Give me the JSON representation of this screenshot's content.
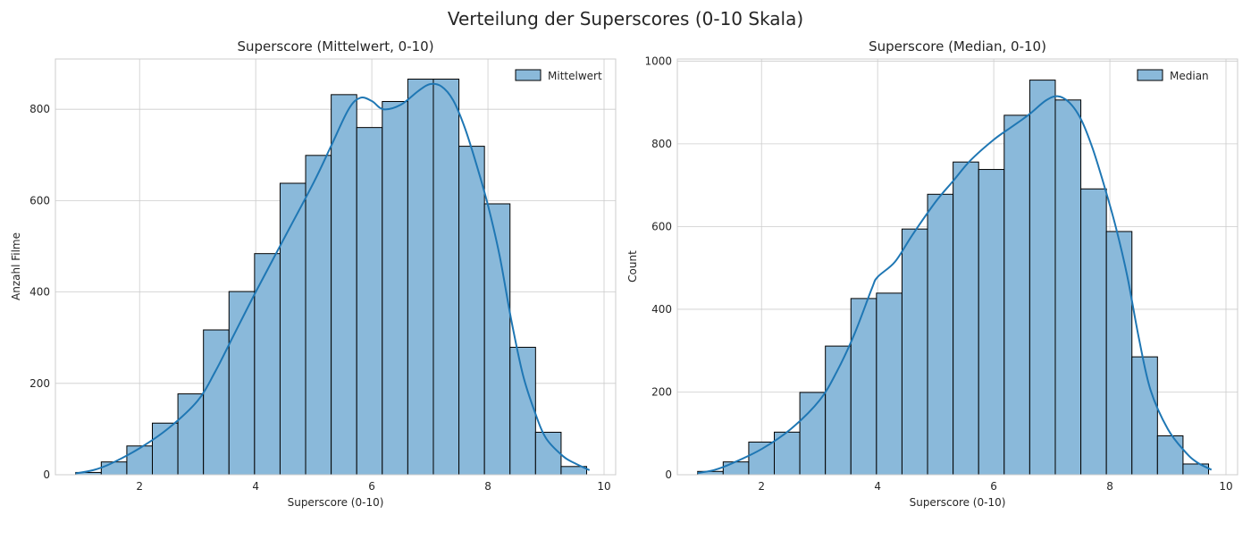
{
  "figure": {
    "suptitle": "Verteilung der Superscores (0-10 Skala)"
  },
  "chart_data": [
    {
      "type": "bar",
      "title": "Superscore (Mittelwert, 0-10)",
      "xlabel": "Superscore (0-10)",
      "ylabel": "Anzahl Filme",
      "xlim": [
        0.55,
        10.2
      ],
      "ylim": [
        0,
        910
      ],
      "xticks": [
        2,
        4,
        6,
        8,
        10
      ],
      "yticks": [
        0,
        200,
        400,
        600,
        800
      ],
      "grid": true,
      "legend": {
        "position": "top-right",
        "label": "Mittelwert"
      },
      "bar_color": "#8ab9da",
      "edge_color": "#000000",
      "kde_color": "#1f77b4",
      "bins": [
        {
          "x0": 0.9,
          "x1": 1.34,
          "count": 5
        },
        {
          "x0": 1.34,
          "x1": 1.78,
          "count": 28
        },
        {
          "x0": 1.78,
          "x1": 2.22,
          "count": 63
        },
        {
          "x0": 2.22,
          "x1": 2.66,
          "count": 113
        },
        {
          "x0": 2.66,
          "x1": 3.1,
          "count": 177
        },
        {
          "x0": 3.1,
          "x1": 3.54,
          "count": 317
        },
        {
          "x0": 3.54,
          "x1": 3.98,
          "count": 401
        },
        {
          "x0": 3.98,
          "x1": 4.42,
          "count": 484
        },
        {
          "x0": 4.42,
          "x1": 4.86,
          "count": 638
        },
        {
          "x0": 4.86,
          "x1": 5.3,
          "count": 699
        },
        {
          "x0": 5.3,
          "x1": 5.74,
          "count": 832
        },
        {
          "x0": 5.74,
          "x1": 6.18,
          "count": 760
        },
        {
          "x0": 6.18,
          "x1": 6.62,
          "count": 817
        },
        {
          "x0": 6.62,
          "x1": 7.06,
          "count": 866
        },
        {
          "x0": 7.06,
          "x1": 7.5,
          "count": 866
        },
        {
          "x0": 7.5,
          "x1": 7.94,
          "count": 719
        },
        {
          "x0": 7.94,
          "x1": 8.38,
          "count": 593
        },
        {
          "x0": 8.38,
          "x1": 8.82,
          "count": 279
        },
        {
          "x0": 8.82,
          "x1": 9.26,
          "count": 93
        },
        {
          "x0": 9.26,
          "x1": 9.7,
          "count": 18
        }
      ],
      "kde": [
        [
          0.9,
          3
        ],
        [
          1.2,
          10
        ],
        [
          1.5,
          24
        ],
        [
          2.0,
          58
        ],
        [
          2.5,
          102
        ],
        [
          3.0,
          162
        ],
        [
          3.3,
          225
        ],
        [
          3.6,
          300
        ],
        [
          4.0,
          400
        ],
        [
          4.5,
          520
        ],
        [
          5.0,
          640
        ],
        [
          5.3,
          720
        ],
        [
          5.6,
          800
        ],
        [
          5.8,
          825
        ],
        [
          6.0,
          818
        ],
        [
          6.2,
          800
        ],
        [
          6.5,
          810
        ],
        [
          6.8,
          840
        ],
        [
          7.0,
          855
        ],
        [
          7.2,
          850
        ],
        [
          7.4,
          820
        ],
        [
          7.6,
          760
        ],
        [
          7.8,
          680
        ],
        [
          8.0,
          590
        ],
        [
          8.2,
          480
        ],
        [
          8.4,
          340
        ],
        [
          8.6,
          220
        ],
        [
          8.8,
          140
        ],
        [
          9.0,
          80
        ],
        [
          9.3,
          40
        ],
        [
          9.5,
          25
        ],
        [
          9.75,
          10
        ]
      ]
    },
    {
      "type": "bar",
      "title": "Superscore (Median, 0-10)",
      "xlabel": "Superscore (0-10)",
      "ylabel": "Count",
      "xlim": [
        0.55,
        10.2
      ],
      "ylim": [
        0,
        1005
      ],
      "xticks": [
        2,
        4,
        6,
        8,
        10
      ],
      "yticks": [
        0,
        200,
        400,
        600,
        800,
        1000
      ],
      "grid": true,
      "legend": {
        "position": "top-right",
        "label": "Median"
      },
      "bar_color": "#8ab9da",
      "edge_color": "#000000",
      "kde_color": "#1f77b4",
      "bins": [
        {
          "x0": 0.9,
          "x1": 1.34,
          "count": 8
        },
        {
          "x0": 1.34,
          "x1": 1.78,
          "count": 31
        },
        {
          "x0": 1.78,
          "x1": 2.22,
          "count": 79
        },
        {
          "x0": 2.22,
          "x1": 2.66,
          "count": 103
        },
        {
          "x0": 2.66,
          "x1": 3.1,
          "count": 199
        },
        {
          "x0": 3.1,
          "x1": 3.54,
          "count": 311
        },
        {
          "x0": 3.54,
          "x1": 3.98,
          "count": 426
        },
        {
          "x0": 3.98,
          "x1": 4.42,
          "count": 439
        },
        {
          "x0": 4.42,
          "x1": 4.86,
          "count": 594
        },
        {
          "x0": 4.86,
          "x1": 5.3,
          "count": 678
        },
        {
          "x0": 5.3,
          "x1": 5.74,
          "count": 756
        },
        {
          "x0": 5.74,
          "x1": 6.18,
          "count": 738
        },
        {
          "x0": 6.18,
          "x1": 6.62,
          "count": 869
        },
        {
          "x0": 6.62,
          "x1": 7.06,
          "count": 954
        },
        {
          "x0": 7.06,
          "x1": 7.5,
          "count": 906
        },
        {
          "x0": 7.5,
          "x1": 7.94,
          "count": 691
        },
        {
          "x0": 7.94,
          "x1": 8.38,
          "count": 588
        },
        {
          "x0": 8.38,
          "x1": 8.82,
          "count": 285
        },
        {
          "x0": 8.82,
          "x1": 9.26,
          "count": 94
        },
        {
          "x0": 9.26,
          "x1": 9.7,
          "count": 26
        }
      ],
      "kde": [
        [
          0.9,
          4
        ],
        [
          1.2,
          12
        ],
        [
          1.5,
          28
        ],
        [
          2.0,
          62
        ],
        [
          2.5,
          110
        ],
        [
          3.0,
          180
        ],
        [
          3.3,
          250
        ],
        [
          3.6,
          340
        ],
        [
          3.9,
          450
        ],
        [
          4.0,
          478
        ],
        [
          4.3,
          515
        ],
        [
          4.6,
          580
        ],
        [
          5.0,
          660
        ],
        [
          5.3,
          710
        ],
        [
          5.6,
          760
        ],
        [
          6.0,
          810
        ],
        [
          6.3,
          840
        ],
        [
          6.6,
          870
        ],
        [
          6.9,
          905
        ],
        [
          7.1,
          915
        ],
        [
          7.3,
          900
        ],
        [
          7.5,
          860
        ],
        [
          7.7,
          790
        ],
        [
          7.9,
          700
        ],
        [
          8.1,
          600
        ],
        [
          8.3,
          480
        ],
        [
          8.5,
          330
        ],
        [
          8.7,
          205
        ],
        [
          9.0,
          110
        ],
        [
          9.3,
          55
        ],
        [
          9.5,
          30
        ],
        [
          9.75,
          12
        ]
      ]
    }
  ]
}
